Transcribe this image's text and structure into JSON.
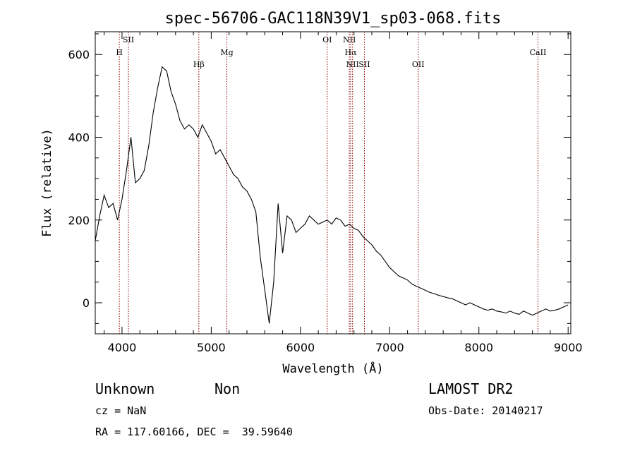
{
  "chart_data": {
    "type": "line",
    "title": "spec-56706-GAC118N39V1_sp03-068.fits",
    "xlabel": "Wavelength (Å)",
    "ylabel": "Flux (relative)",
    "xlim": [
      3700,
      9030
    ],
    "ylim": [
      -75,
      655
    ],
    "xticks": [
      4000,
      5000,
      6000,
      7000,
      8000,
      9000
    ],
    "yticks": [
      0,
      200,
      400,
      600
    ],
    "grid": false,
    "legend": "none",
    "line_color": "#000000",
    "marker_color": "#8b0000",
    "spectral_lines": [
      {
        "label": "H",
        "x": 3970,
        "label_y": 75
      },
      {
        "label": "SII",
        "x": 4072,
        "label_y": 57
      },
      {
        "label": "Hβ",
        "x": 4861,
        "label_y": 92
      },
      {
        "label": "Mg",
        "x": 5175,
        "label_y": 75
      },
      {
        "label": "OI",
        "x": 6300,
        "label_y": 57
      },
      {
        "label": "NII",
        "x": 6548,
        "label_y": 57
      },
      {
        "label": "Hα",
        "x": 6563,
        "label_y": 75
      },
      {
        "label": "NII",
        "x": 6584,
        "label_y": 92
      },
      {
        "label": "SII",
        "x": 6717,
        "label_y": 92
      },
      {
        "label": "OII",
        "x": 7320,
        "label_y": 92
      },
      {
        "label": "CaII",
        "x": 8662,
        "label_y": 75
      }
    ],
    "series": [
      {
        "x": [
          3700,
          3750,
          3800,
          3850,
          3900,
          3950,
          4000,
          4050,
          4100,
          4150,
          4200,
          4250,
          4300,
          4350,
          4400,
          4450,
          4500,
          4550,
          4600,
          4650,
          4700,
          4750,
          4800,
          4850,
          4900,
          4950,
          5000,
          5050,
          5100,
          5150,
          5200,
          5250,
          5300,
          5350,
          5400,
          5450,
          5500,
          5550,
          5600,
          5650,
          5700,
          5750,
          5800,
          5850,
          5900,
          5950,
          6000,
          6050,
          6100,
          6150,
          6200,
          6250,
          6300,
          6350,
          6400,
          6450,
          6500,
          6550,
          6600,
          6650,
          6700,
          6750,
          6800,
          6850,
          6900,
          6950,
          7000,
          7050,
          7100,
          7150,
          7200,
          7250,
          7300,
          7350,
          7400,
          7450,
          7500,
          7550,
          7600,
          7650,
          7700,
          7750,
          7800,
          7850,
          7900,
          7950,
          8000,
          8050,
          8100,
          8150,
          8200,
          8250,
          8300,
          8350,
          8400,
          8450,
          8500,
          8550,
          8600,
          8650,
          8700,
          8750,
          8800,
          8850,
          8900,
          8950,
          9000
        ],
        "values": [
          150,
          210,
          260,
          230,
          240,
          200,
          250,
          320,
          400,
          290,
          300,
          320,
          380,
          460,
          520,
          570,
          560,
          510,
          480,
          440,
          420,
          430,
          420,
          400,
          430,
          410,
          390,
          360,
          370,
          350,
          330,
          310,
          300,
          280,
          270,
          250,
          220,
          110,
          30,
          -50,
          50,
          240,
          120,
          210,
          200,
          170,
          180,
          190,
          210,
          200,
          190,
          195,
          200,
          190,
          205,
          200,
          185,
          190,
          180,
          175,
          160,
          150,
          140,
          125,
          115,
          100,
          85,
          75,
          65,
          60,
          55,
          45,
          40,
          35,
          30,
          25,
          22,
          18,
          15,
          12,
          10,
          5,
          0,
          -5,
          0,
          -5,
          -10,
          -15,
          -18,
          -15,
          -20,
          -22,
          -25,
          -20,
          -25,
          -28,
          -20,
          -25,
          -30,
          -25,
          -20,
          -15,
          -20,
          -18,
          -15,
          -10,
          -5
        ]
      }
    ]
  },
  "footer": {
    "class_label": "Unknown",
    "subclass_label": "Non",
    "survey": "LAMOST DR2",
    "cz": "cz = NaN",
    "obs_date": "Obs-Date: 20140217",
    "coords": "RA = 117.60166, DEC =  39.59640"
  }
}
